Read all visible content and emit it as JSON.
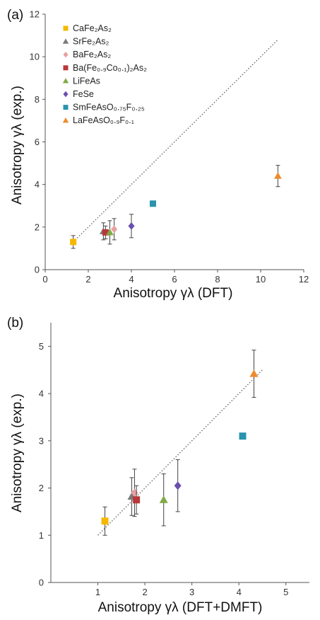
{
  "colors": {
    "CaFe2As2": "#f5b800",
    "SrFe2As2": "#7a7a7a",
    "BaFe2As2": "#e8a0a0",
    "BaFeCoAs2": "#b8373a",
    "LiFeAs": "#7faa45",
    "FeSe": "#6a4fb0",
    "SmFeAsO": "#2a93ae",
    "LaFeAsO": "#ef8a2c",
    "axis": "#555555",
    "fit": "#555555"
  },
  "chart_data": [
    {
      "type": "scatter",
      "panel_label": "(a)",
      "xlabel": "Anisotropy γλ (DFT)",
      "ylabel": "Anisotropy γλ (exp.)",
      "xlim": [
        0,
        12
      ],
      "ylim": [
        0,
        12
      ],
      "xticks": [
        "0",
        "2",
        "4",
        "6",
        "8",
        "10",
        "12"
      ],
      "yticks": [
        "0",
        "2",
        "4",
        "6",
        "8",
        "10",
        "12"
      ],
      "legend_position": "top-left",
      "reference_line": {
        "style": "dotted",
        "x": [
          1.3,
          10.8
        ],
        "y": [
          1.3,
          10.8
        ]
      },
      "series": [
        {
          "name": "CaFe₂As₂",
          "key": "CaFe2As2",
          "marker": "square",
          "x": 1.3,
          "y": 1.3,
          "err": 0.3
        },
        {
          "name": "SrFe₂As₂",
          "key": "SrFe2As2",
          "marker": "triangle",
          "x": 2.7,
          "y": 1.8,
          "err": 0.4
        },
        {
          "name": "BaFe₂As₂",
          "key": "BaFe2As2",
          "marker": "diamond",
          "x": 3.2,
          "y": 1.9,
          "err": 0.5
        },
        {
          "name": "Ba(Fe₀.₉Co₀.₁)₂As₂",
          "key": "BaFeCoAs2",
          "marker": "square",
          "x": 2.8,
          "y": 1.75,
          "err": 0.3
        },
        {
          "name": "LiFeAs",
          "key": "LiFeAs",
          "marker": "triangle",
          "x": 3.0,
          "y": 1.75,
          "err": 0.55
        },
        {
          "name": "FeSe",
          "key": "FeSe",
          "marker": "diamond",
          "x": 4.0,
          "y": 2.05,
          "err": 0.55
        },
        {
          "name": "SmFeAsO₀.₇₅F₀.₂₅",
          "key": "SmFeAsO",
          "marker": "square",
          "x": 5.0,
          "y": 3.1,
          "err": 0
        },
        {
          "name": "LaFeAsO₀.₉F₀.₁",
          "key": "LaFeAsO",
          "marker": "triangle",
          "x": 10.8,
          "y": 4.4,
          "err": 0.5
        }
      ]
    },
    {
      "type": "scatter",
      "panel_label": "(b)",
      "xlabel": "Anisotropy γλ (DFT+DMFT)",
      "ylabel": "Anisotropy γλ (exp.)",
      "xlim": [
        0,
        5.5
      ],
      "ylim": [
        0,
        5.5
      ],
      "xticks": [
        "1",
        "2",
        "3",
        "4",
        "5"
      ],
      "yticks": [
        "0",
        "1",
        "2",
        "3",
        "4",
        "5"
      ],
      "reference_line": {
        "style": "dotted",
        "x": [
          1.0,
          4.5
        ],
        "y": [
          1.0,
          4.5
        ]
      },
      "series": [
        {
          "key": "CaFe2As2",
          "marker": "square",
          "x": 1.15,
          "y": 1.3,
          "err": 0.3
        },
        {
          "key": "SrFe2As2",
          "marker": "triangle",
          "x": 1.72,
          "y": 1.82,
          "err": 0.4
        },
        {
          "key": "BaFe2As2",
          "marker": "diamond",
          "x": 1.78,
          "y": 1.9,
          "err": 0.5
        },
        {
          "key": "BaFeCoAs2",
          "marker": "square",
          "x": 1.82,
          "y": 1.75,
          "err": 0.3
        },
        {
          "key": "LiFeAs",
          "marker": "triangle",
          "x": 2.4,
          "y": 1.75,
          "err": 0.55
        },
        {
          "key": "FeSe",
          "marker": "diamond",
          "x": 2.7,
          "y": 2.05,
          "err": 0.55
        },
        {
          "key": "SmFeAsO",
          "marker": "square",
          "x": 4.08,
          "y": 3.1,
          "err": 0
        },
        {
          "key": "LaFeAsO",
          "marker": "triangle",
          "x": 4.32,
          "y": 4.42,
          "err": 0.5
        }
      ]
    }
  ]
}
